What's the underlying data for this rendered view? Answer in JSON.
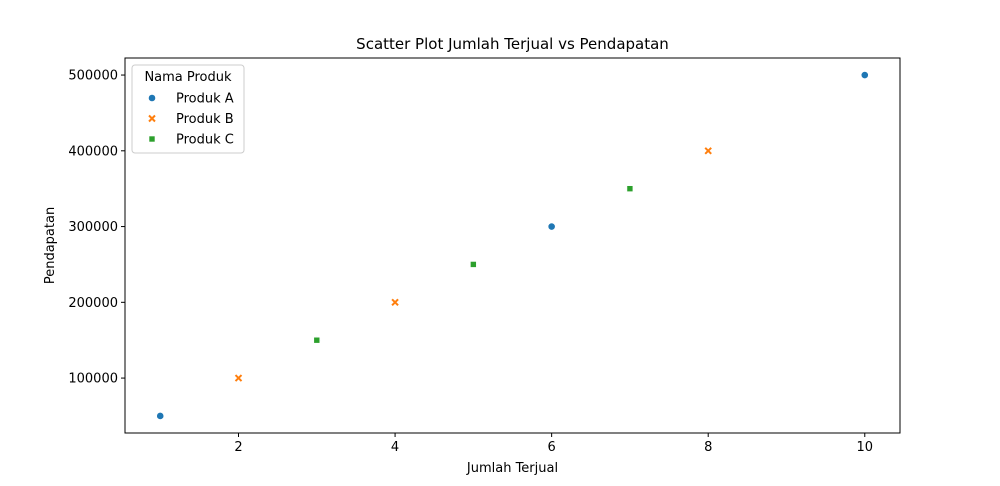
{
  "chart_data": {
    "type": "scatter",
    "title": "Scatter Plot Jumlah Terjual vs Pendapatan",
    "xlabel": "Jumlah Terjual",
    "ylabel": "Pendapatan",
    "xlim": [
      0.55,
      10.45
    ],
    "ylim": [
      27500,
      522500
    ],
    "xticks": [
      2,
      4,
      6,
      8,
      10
    ],
    "yticks": [
      100000,
      200000,
      300000,
      400000,
      500000
    ],
    "grid": false,
    "legend": {
      "title": "Nama Produk",
      "position": "top-left"
    },
    "series": [
      {
        "name": "Produk A",
        "marker": "circle",
        "color": "#1f77b4",
        "points": [
          {
            "x": 1,
            "y": 50000
          },
          {
            "x": 3,
            "y": 150000
          },
          {
            "x": 6,
            "y": 300000
          },
          {
            "x": 10,
            "y": 500000
          }
        ]
      },
      {
        "name": "Produk B",
        "marker": "x",
        "color": "#ff7f0e",
        "points": [
          {
            "x": 2,
            "y": 100000
          },
          {
            "x": 4,
            "y": 200000
          },
          {
            "x": 8,
            "y": 400000
          }
        ]
      },
      {
        "name": "Produk C",
        "marker": "square",
        "color": "#2ca02c",
        "points": [
          {
            "x": 3,
            "y": 150000
          },
          {
            "x": 5,
            "y": 250000
          },
          {
            "x": 7,
            "y": 350000
          }
        ]
      }
    ]
  }
}
